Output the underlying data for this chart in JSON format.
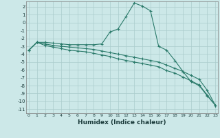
{
  "xlabel": "Humidex (Indice chaleur)",
  "bg_color": "#cce8e8",
  "grid_color": "#aacccc",
  "line_color": "#2a7a6a",
  "x": [
    0,
    1,
    2,
    3,
    4,
    5,
    6,
    7,
    8,
    9,
    10,
    11,
    12,
    13,
    14,
    15,
    16,
    17,
    18,
    19,
    20,
    21,
    22,
    23
  ],
  "y_main": [
    -3.5,
    -2.5,
    -2.5,
    -2.6,
    -2.7,
    -2.8,
    -2.8,
    -2.8,
    -2.8,
    -2.7,
    -1.2,
    -0.8,
    0.8,
    2.5,
    2.1,
    1.5,
    -3.0,
    -3.5,
    -4.8,
    -6.2,
    -7.5,
    -8.0,
    -9.3,
    -10.5
  ],
  "y_low1": [
    -3.5,
    -2.5,
    -2.9,
    -3.1,
    -3.3,
    -3.5,
    -3.6,
    -3.7,
    -3.9,
    -4.1,
    -4.3,
    -4.6,
    -4.8,
    -5.0,
    -5.2,
    -5.4,
    -5.6,
    -6.1,
    -6.4,
    -6.9,
    -7.4,
    -7.9,
    -9.2,
    -10.5
  ],
  "y_low2": [
    -3.5,
    -2.5,
    -2.7,
    -2.9,
    -3.0,
    -3.1,
    -3.2,
    -3.3,
    -3.4,
    -3.6,
    -3.8,
    -4.0,
    -4.2,
    -4.4,
    -4.6,
    -4.8,
    -5.0,
    -5.4,
    -5.8,
    -6.2,
    -6.7,
    -7.2,
    -8.6,
    -10.5
  ],
  "ylim": [
    -11.5,
    2.7
  ],
  "yticks": [
    2,
    1,
    0,
    -1,
    -2,
    -3,
    -4,
    -5,
    -6,
    -7,
    -8,
    -9,
    -10,
    -11
  ],
  "xlim": [
    -0.3,
    23.3
  ]
}
